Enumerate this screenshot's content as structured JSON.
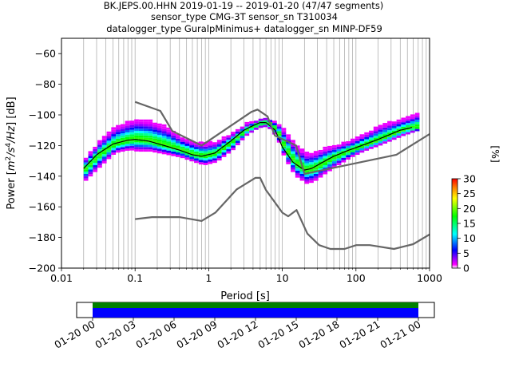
{
  "chart_data": {
    "type": "heatmap",
    "title_lines": [
      "BK.JEPS.00.HHN   2019-01-19 -- 2019-01-20  (47/47 segments)",
      "sensor_type CMG-3T sensor_sn T310034",
      "datalogger_type GuralpMinimus+ datalogger_sn MINP-DF59"
    ],
    "xlabel": "Period [s]",
    "ylabel_parts": [
      "Power [",
      "m",
      "2",
      "/s",
      "4",
      "/Hz",
      "] [dB]"
    ],
    "x_scale": "log",
    "xlim": [
      0.01,
      1000
    ],
    "ylim": [
      -200,
      -50
    ],
    "x_ticks": [
      {
        "value": 0.01,
        "label": "0.01"
      },
      {
        "value": 0.1,
        "label": "0.1"
      },
      {
        "value": 1,
        "label": "1"
      },
      {
        "value": 10,
        "label": "10"
      },
      {
        "value": 100,
        "label": "100"
      },
      {
        "value": 1000,
        "label": "1000"
      }
    ],
    "y_ticks": [
      {
        "value": -60,
        "label": "−60"
      },
      {
        "value": -80,
        "label": "−80"
      },
      {
        "value": -100,
        "label": "−100"
      },
      {
        "value": -120,
        "label": "−120"
      },
      {
        "value": -140,
        "label": "−140"
      },
      {
        "value": -160,
        "label": "−160"
      },
      {
        "value": -180,
        "label": "−180"
      },
      {
        "value": -200,
        "label": "−200"
      }
    ],
    "grid": "vertical",
    "colorbar": {
      "label": "[%]",
      "range": [
        0,
        30
      ],
      "ticks": [
        {
          "value": 0,
          "label": "0"
        },
        {
          "value": 5,
          "label": "5"
        },
        {
          "value": 10,
          "label": "10"
        },
        {
          "value": 15,
          "label": "15"
        },
        {
          "value": 20,
          "label": "20"
        },
        {
          "value": 25,
          "label": "25"
        },
        {
          "value": 30,
          "label": "30"
        }
      ],
      "colors": [
        "#ffffff",
        "#ff00ff",
        "#0000ff",
        "#00ffff",
        "#00ff00",
        "#ffff00",
        "#ff8000",
        "#ff0000"
      ]
    },
    "noise_models": {
      "high": {
        "x": [
          0.1,
          0.22,
          0.32,
          0.8,
          3.8,
          4.6,
          6.3,
          7.9,
          15.4,
          20,
          354.8,
          1000
        ],
        "y": [
          -91.5,
          -97.4,
          -110.5,
          -120.0,
          -98.0,
          -96.5,
          -101.0,
          -113.5,
          -120.0,
          -138.5,
          -126.0,
          -112.5
        ]
      },
      "low": {
        "x": [
          0.1,
          0.17,
          0.4,
          0.8,
          1.24,
          2.4,
          4.3,
          5.0,
          6.0,
          10.0,
          12.0,
          15.6,
          21.9,
          31.6,
          45,
          70,
          101,
          154,
          328,
          600,
          1000
        ],
        "y": [
          -168.0,
          -166.7,
          -166.7,
          -169.2,
          -163.7,
          -148.6,
          -141.1,
          -141.1,
          -149.0,
          -163.8,
          -166.2,
          -162.1,
          -177.5,
          -185.0,
          -187.5,
          -187.5,
          -185.0,
          -185.0,
          -187.5,
          -184.4,
          -178.0
        ]
      }
    },
    "median_psd": {
      "x": [
        0.02,
        0.03,
        0.05,
        0.08,
        0.1,
        0.15,
        0.25,
        0.4,
        0.6,
        0.8,
        1.2,
        2,
        3,
        4,
        5,
        6,
        8,
        10,
        14,
        20,
        25,
        35,
        50,
        80,
        120,
        200,
        400,
        600
      ],
      "y": [
        -135,
        -126,
        -119,
        -116.5,
        -116,
        -117,
        -120,
        -123,
        -126,
        -127,
        -125,
        -117,
        -110,
        -107,
        -105,
        -105,
        -110,
        -121,
        -131,
        -136,
        -135,
        -131,
        -127,
        -123,
        -120,
        -116,
        -110,
        -108
      ]
    },
    "psd_spread": {
      "x": [
        0.02,
        0.03,
        0.05,
        0.08,
        0.1,
        0.15,
        0.25,
        0.4,
        0.6,
        0.8,
        1.2,
        2,
        3,
        4,
        5,
        6,
        8,
        10,
        14,
        20,
        25,
        35,
        50,
        80,
        120,
        200,
        400,
        600,
        700
      ],
      "upper": [
        -128,
        -118,
        -108,
        -104,
        -103,
        -104,
        -108,
        -115,
        -118,
        -119,
        -118,
        -112,
        -106,
        -104,
        -103,
        -103,
        -105,
        -110,
        -120,
        -125,
        -125,
        -122,
        -120,
        -117,
        -113,
        -107,
        -103,
        -100,
        -98
      ],
      "lower": [
        -143,
        -135,
        -125,
        -123,
        -124,
        -124,
        -126,
        -128,
        -131,
        -133,
        -131,
        -123,
        -114,
        -110,
        -108,
        -108,
        -115,
        -128,
        -140,
        -145,
        -144,
        -139,
        -134,
        -128,
        -124,
        -120,
        -114,
        -111,
        -110
      ]
    },
    "time_coverage": {
      "ticks": [
        "01-20 00",
        "01-20 03",
        "01-20 06",
        "01-20 09",
        "01-20 12",
        "01-20 15",
        "01-20 18",
        "01-20 21",
        "01-21 00"
      ],
      "bar_colors": [
        "#008000",
        "#0000ff"
      ]
    }
  }
}
